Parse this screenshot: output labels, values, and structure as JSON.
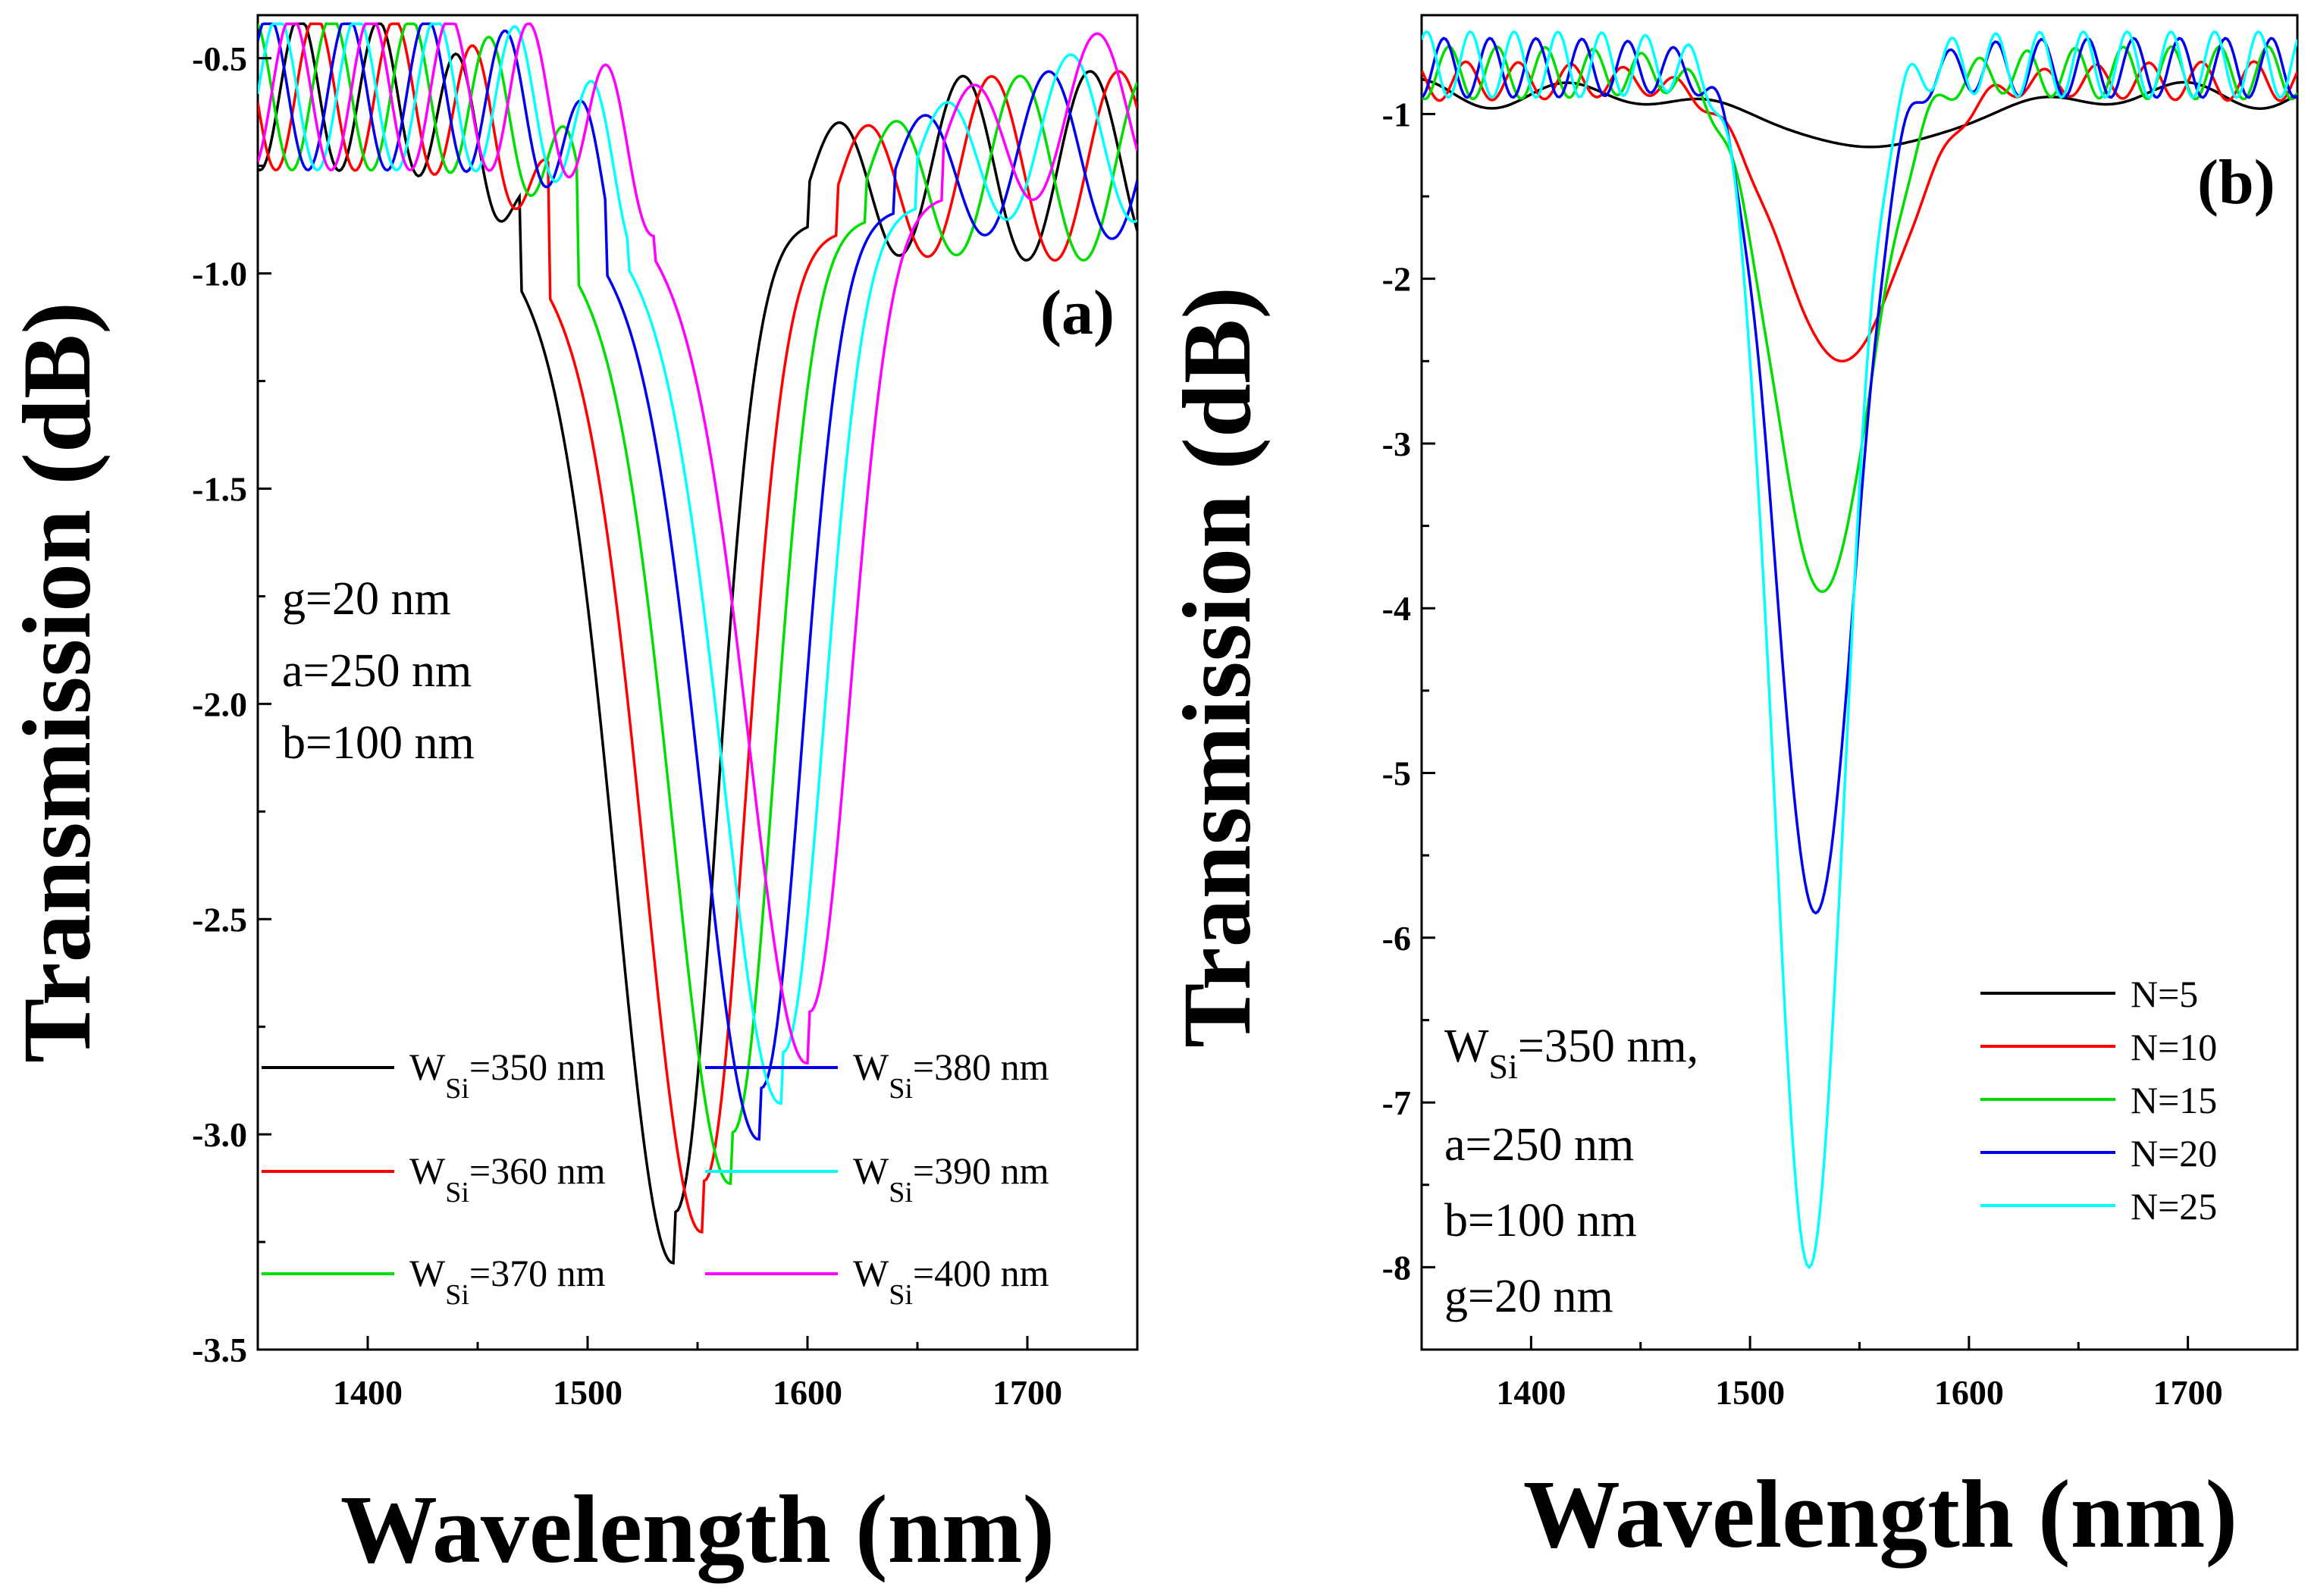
{
  "chart_data": [
    {
      "panel": "(a)",
      "type": "line",
      "xlabel": "Wavelength (nm)",
      "ylabel": "Transmission (dB)",
      "xlim": [
        1350,
        1750
      ],
      "ylim": [
        -3.5,
        -0.4
      ],
      "xticks": [
        1400,
        1500,
        1600,
        1700
      ],
      "yticks": [
        -0.5,
        -1.0,
        -1.5,
        -2.0,
        -2.5,
        -3.0,
        -3.5
      ],
      "ytick_labels": [
        "-0.5",
        "-1.0",
        "-1.5",
        "-2.0",
        "-2.5",
        "-3.0",
        "-3.5"
      ],
      "annotation": [
        "g=20 nm",
        "a=250 nm",
        "b=100 nm"
      ],
      "legend_placement": "bottom",
      "series": [
        {
          "name": "WSi=350 nm",
          "label_main": "W",
          "label_sub": "Si",
          "label_rest": "=350 nm",
          "color": "#000000",
          "center": 1540,
          "depth": 2.5,
          "edge": -0.88,
          "ripple_amp": 0.18,
          "ripple_period": 36,
          "post": -0.75,
          "post_amp": 0.22,
          "post_period": 58
        },
        {
          "name": "WSi=360 nm",
          "label_main": "W",
          "label_sub": "Si",
          "label_rest": "=360 nm",
          "color": "#ff0000",
          "center": 1553,
          "depth": 2.4,
          "edge": -0.9,
          "ripple_amp": 0.18,
          "ripple_period": 36,
          "post": -0.75,
          "post_amp": 0.22,
          "post_period": 58
        },
        {
          "name": "WSi=370 nm",
          "label_main": "W",
          "label_sub": "Si",
          "label_rest": "=370 nm",
          "color": "#00dd00",
          "center": 1566,
          "depth": 2.31,
          "edge": -0.87,
          "ripple_amp": 0.18,
          "ripple_period": 36,
          "post": -0.75,
          "post_amp": 0.22,
          "post_period": 58
        },
        {
          "name": "WSi=380 nm",
          "label_main": "W",
          "label_sub": "Si",
          "label_rest": "=380 nm",
          "color": "#0000ee",
          "center": 1579,
          "depth": 2.22,
          "edge": -0.85,
          "ripple_amp": 0.18,
          "ripple_period": 36,
          "post": -0.72,
          "post_amp": 0.2,
          "post_period": 58
        },
        {
          "name": "WSi=390 nm",
          "label_main": "W",
          "label_sub": "Si",
          "label_rest": "=390 nm",
          "color": "#00ffff",
          "center": 1589,
          "depth": 2.14,
          "edge": -0.84,
          "ripple_amp": 0.18,
          "ripple_period": 36,
          "post": -0.68,
          "post_amp": 0.2,
          "post_period": 58
        },
        {
          "name": "WSi=400 nm",
          "label_main": "W",
          "label_sub": "Si",
          "label_rest": "=400 nm",
          "color": "#ff00ff",
          "center": 1601,
          "depth": 2.06,
          "edge": -0.82,
          "ripple_amp": 0.18,
          "ripple_period": 36,
          "post": -0.63,
          "post_amp": 0.2,
          "post_period": 58
        }
      ]
    },
    {
      "panel": "(b)",
      "type": "line",
      "xlabel": "Wavelength (nm)",
      "ylabel": "Transmission (dB)",
      "xlim": [
        1350,
        1750
      ],
      "ylim": [
        -8.5,
        -0.4
      ],
      "xticks": [
        1400,
        1500,
        1600,
        1700
      ],
      "yticks": [
        -1,
        -2,
        -3,
        -4,
        -5,
        -6,
        -7,
        -8
      ],
      "ytick_labels": [
        "-1",
        "-2",
        "-3",
        "-4",
        "-5",
        "-6",
        "-7",
        "-8"
      ],
      "annotation": [
        "WSi=350 nm,",
        "a=250 nm",
        "b=100 nm",
        "g=20 nm"
      ],
      "annotation_first": {
        "main": "W",
        "sub": "Si",
        "rest": "=350 nm,"
      },
      "legend_placement": "bottom-right",
      "series": [
        {
          "name": "N=5",
          "color": "#000000",
          "center": 1555,
          "depth": 1.2,
          "width": 40,
          "edge": -0.88,
          "ripple_amp": 0.1,
          "ripple_period": 70
        },
        {
          "name": "N=10",
          "color": "#ff0000",
          "center": 1542,
          "depth": 2.5,
          "width": 28,
          "edge": -0.8,
          "ripple_amp": 0.12,
          "ripple_period": 24
        },
        {
          "name": "N=15",
          "color": "#00dd00",
          "center": 1533,
          "depth": 3.9,
          "width": 22,
          "edge": -0.75,
          "ripple_amp": 0.16,
          "ripple_period": 22
        },
        {
          "name": "N=20",
          "color": "#0000ee",
          "center": 1530,
          "depth": 5.85,
          "width": 18,
          "edge": -0.72,
          "ripple_amp": 0.18,
          "ripple_period": 21
        },
        {
          "name": "N=25",
          "color": "#00ffff",
          "center": 1527,
          "depth": 8.0,
          "width": 16,
          "edge": -0.7,
          "ripple_amp": 0.2,
          "ripple_period": 20
        }
      ]
    }
  ]
}
